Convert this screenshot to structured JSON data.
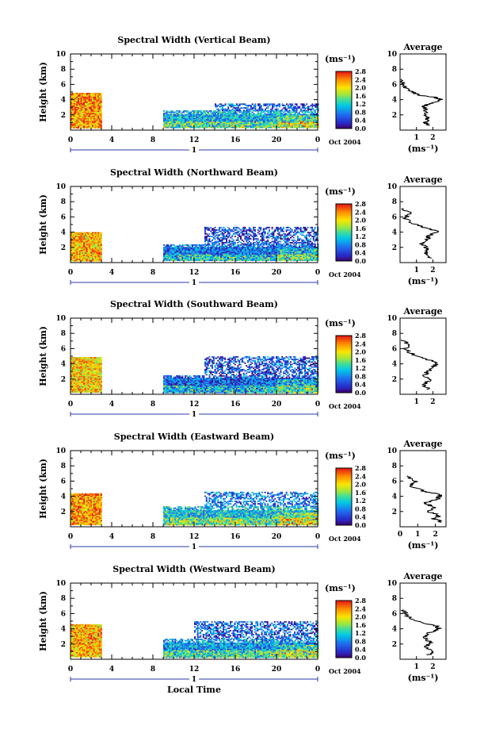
{
  "chart_data": [
    {
      "type": "heatmap",
      "title": "Spectral Width (Vertical Beam)",
      "ylabel": "Height (km)",
      "xlim": [
        0,
        24
      ],
      "ylim": [
        0,
        10
      ],
      "xticks": [
        "0",
        "4",
        "8",
        "12",
        "16",
        "20",
        "0"
      ],
      "yticks": [
        "2",
        "4",
        "6",
        "8",
        "10"
      ],
      "day_label": "1",
      "date_label": "Oct 2004",
      "colorbar": {
        "unit": "(ms⁻¹)",
        "ticks": [
          "0.0",
          "0.4",
          "0.8",
          "1.2",
          "1.6",
          "2.0",
          "2.4",
          "2.8"
        ],
        "range": [
          0,
          2.8
        ]
      },
      "coverage": [
        {
          "x0": 0,
          "x1": 3,
          "h0": 0.3,
          "h1": 4.9,
          "mean": 2.3
        },
        {
          "x0": 9,
          "x1": 24,
          "h0": 0.3,
          "h1": 2.6,
          "mean": 1.0
        },
        {
          "x0": 14,
          "x1": 24,
          "h0": 2.6,
          "h1": 3.5,
          "mean": 0.6
        }
      ],
      "average": {
        "title": "Average",
        "xlabel": "(ms⁻¹)",
        "xticks": [
          "1",
          "2"
        ],
        "yticks": [
          "2",
          "4",
          "6",
          "8",
          "10"
        ],
        "xlim": [
          0,
          2.8
        ],
        "ylim": [
          0,
          10
        ],
        "profile": [
          [
            1.75,
            0.6
          ],
          [
            1.55,
            1.0
          ],
          [
            1.7,
            1.5
          ],
          [
            1.45,
            2.0
          ],
          [
            1.6,
            2.6
          ],
          [
            1.4,
            3.1
          ],
          [
            2.0,
            3.6
          ],
          [
            2.5,
            4.0
          ],
          [
            2.1,
            4.3
          ],
          [
            1.2,
            4.6
          ],
          [
            0.5,
            5.2
          ],
          [
            0.2,
            6.0
          ],
          [
            0.05,
            6.8
          ]
        ]
      }
    },
    {
      "type": "heatmap",
      "title": "Spectral Width (Northward Beam)",
      "ylabel": "Height (km)",
      "xlim": [
        0,
        24
      ],
      "ylim": [
        0,
        10
      ],
      "xticks": [
        "0",
        "4",
        "8",
        "12",
        "16",
        "20",
        "0"
      ],
      "yticks": [
        "2",
        "4",
        "6",
        "8",
        "10"
      ],
      "day_label": "1",
      "date_label": "Oct 2004",
      "colorbar": {
        "unit": "(ms⁻¹)",
        "ticks": [
          "0.0",
          "0.4",
          "0.8",
          "1.2",
          "1.6",
          "2.0",
          "2.4",
          "2.8"
        ],
        "range": [
          0,
          2.8
        ]
      },
      "coverage": [
        {
          "x0": 0,
          "x1": 3,
          "h0": 0.3,
          "h1": 4.0,
          "mean": 2.2
        },
        {
          "x0": 9,
          "x1": 24,
          "h0": 0.3,
          "h1": 2.4,
          "mean": 0.7
        },
        {
          "x0": 13,
          "x1": 24,
          "h0": 2.4,
          "h1": 4.7,
          "mean": 0.5
        }
      ],
      "average": {
        "title": "Average",
        "xlabel": "(ms⁻¹)",
        "xticks": [
          "1",
          "2"
        ],
        "yticks": [
          "2",
          "4",
          "6",
          "8",
          "10"
        ],
        "xlim": [
          0,
          2.8
        ],
        "ylim": [
          0,
          10
        ],
        "profile": [
          [
            1.8,
            0.6
          ],
          [
            1.5,
            1.2
          ],
          [
            1.7,
            1.8
          ],
          [
            1.3,
            2.4
          ],
          [
            1.6,
            3.0
          ],
          [
            1.8,
            3.5
          ],
          [
            2.3,
            4.1
          ],
          [
            1.7,
            4.5
          ],
          [
            0.9,
            5.0
          ],
          [
            0.3,
            5.8
          ],
          [
            0.6,
            6.5
          ],
          [
            0.1,
            7.2
          ]
        ]
      }
    },
    {
      "type": "heatmap",
      "title": "Spectral Width (Southward Beam)",
      "ylabel": "Height (km)",
      "xlim": [
        0,
        24
      ],
      "ylim": [
        0,
        10
      ],
      "xticks": [
        "0",
        "4",
        "8",
        "12",
        "16",
        "20",
        "0"
      ],
      "yticks": [
        "2",
        "4",
        "6",
        "8",
        "10"
      ],
      "day_label": "1",
      "date_label": "Oct 2004",
      "colorbar": {
        "unit": "(ms⁻¹)",
        "ticks": [
          "0.0",
          "0.4",
          "0.8",
          "1.2",
          "1.6",
          "2.0",
          "2.4",
          "2.8"
        ],
        "range": [
          0,
          2.8
        ]
      },
      "coverage": [
        {
          "x0": 0,
          "x1": 3,
          "h0": 0.3,
          "h1": 4.9,
          "mean": 2.1
        },
        {
          "x0": 9,
          "x1": 24,
          "h0": 0.3,
          "h1": 2.5,
          "mean": 0.6
        },
        {
          "x0": 13,
          "x1": 24,
          "h0": 2.5,
          "h1": 5.0,
          "mean": 0.5
        }
      ],
      "average": {
        "title": "Average",
        "xlabel": "",
        "xticks": [
          "1",
          "2"
        ],
        "yticks": [
          "2",
          "4",
          "6",
          "8",
          "10"
        ],
        "xlim": [
          0,
          2.8
        ],
        "ylim": [
          0,
          10
        ],
        "profile": [
          [
            1.7,
            0.6
          ],
          [
            1.5,
            1.2
          ],
          [
            1.8,
            1.8
          ],
          [
            1.4,
            2.4
          ],
          [
            1.7,
            3.0
          ],
          [
            2.0,
            3.6
          ],
          [
            2.3,
            4.1
          ],
          [
            1.6,
            4.6
          ],
          [
            0.8,
            5.2
          ],
          [
            0.3,
            6.0
          ],
          [
            0.5,
            6.6
          ],
          [
            0.05,
            7.2
          ]
        ]
      }
    },
    {
      "type": "heatmap",
      "title": "Spectral Width (Eastward Beam)",
      "ylabel": "Height (km)",
      "xlim": [
        0,
        24
      ],
      "ylim": [
        0,
        10
      ],
      "xticks": [
        "0",
        "4",
        "8",
        "12",
        "16",
        "20",
        "0"
      ],
      "yticks": [
        "2",
        "4",
        "6",
        "8",
        "10"
      ],
      "day_label": "1",
      "date_label": "Oct 2004",
      "colorbar": {
        "unit": "(ms⁻¹)",
        "ticks": [
          "0.0",
          "0.4",
          "0.8",
          "1.2",
          "1.6",
          "2.0",
          "2.4",
          "2.8"
        ],
        "range": [
          0,
          2.8
        ]
      },
      "coverage": [
        {
          "x0": 0,
          "x1": 3,
          "h0": 0.3,
          "h1": 4.4,
          "mean": 2.3
        },
        {
          "x0": 9,
          "x1": 24,
          "h0": 0.3,
          "h1": 2.7,
          "mean": 1.1
        },
        {
          "x0": 13,
          "x1": 24,
          "h0": 2.7,
          "h1": 4.6,
          "mean": 0.7
        }
      ],
      "average": {
        "title": "Average",
        "xlabel": "(ms⁻¹)",
        "xticks": [
          "0",
          "1",
          "2"
        ],
        "yticks": [
          "2",
          "4",
          "6",
          "8",
          "10"
        ],
        "xlim": [
          0,
          2.6
        ],
        "ylim": [
          0,
          10
        ],
        "profile": [
          [
            2.4,
            0.6
          ],
          [
            1.9,
            1.0
          ],
          [
            2.2,
            1.5
          ],
          [
            1.6,
            2.0
          ],
          [
            1.9,
            2.6
          ],
          [
            1.4,
            3.1
          ],
          [
            2.1,
            3.6
          ],
          [
            2.3,
            4.2
          ],
          [
            1.3,
            4.7
          ],
          [
            0.6,
            5.4
          ],
          [
            0.9,
            6.0
          ],
          [
            0.2,
            6.8
          ]
        ]
      }
    },
    {
      "type": "heatmap",
      "title": "Spectral Width (Westward Beam)",
      "ylabel": "Height (km)",
      "xlabel": "Local Time",
      "xlim": [
        0,
        24
      ],
      "ylim": [
        0,
        10
      ],
      "xticks": [
        "0",
        "4",
        "8",
        "12",
        "16",
        "20",
        "0"
      ],
      "yticks": [
        "2",
        "4",
        "6",
        "8",
        "10"
      ],
      "day_label": "1",
      "date_label": "Oct 2004",
      "colorbar": {
        "unit": "(ms⁻¹)",
        "ticks": [
          "0.0",
          "0.4",
          "0.8",
          "1.2",
          "1.6",
          "2.0",
          "2.4",
          "2.8"
        ],
        "range": [
          0,
          2.8
        ]
      },
      "coverage": [
        {
          "x0": 0,
          "x1": 3,
          "h0": 0.3,
          "h1": 4.6,
          "mean": 2.2
        },
        {
          "x0": 9,
          "x1": 24,
          "h0": 0.3,
          "h1": 2.7,
          "mean": 0.9
        },
        {
          "x0": 12,
          "x1": 24,
          "h0": 2.7,
          "h1": 5.0,
          "mean": 0.6
        }
      ],
      "average": {
        "title": "Average",
        "xlabel": "(ms⁻¹)",
        "xticks": [
          "1",
          "2"
        ],
        "yticks": [
          "2",
          "4",
          "6",
          "8",
          "10"
        ],
        "xlim": [
          0,
          2.8
        ],
        "ylim": [
          0,
          10
        ],
        "profile": [
          [
            1.7,
            0.6
          ],
          [
            2.1,
            1.0
          ],
          [
            1.6,
            1.6
          ],
          [
            1.9,
            2.2
          ],
          [
            1.4,
            2.8
          ],
          [
            1.7,
            3.4
          ],
          [
            2.4,
            4.0
          ],
          [
            2.2,
            4.4
          ],
          [
            1.0,
            5.0
          ],
          [
            0.4,
            5.8
          ],
          [
            0.2,
            6.6
          ]
        ]
      }
    }
  ]
}
